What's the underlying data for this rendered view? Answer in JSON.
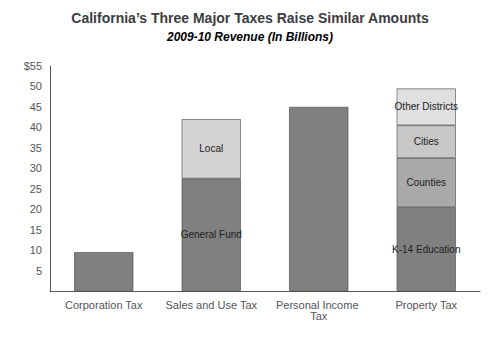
{
  "chart_data": {
    "type": "bar",
    "stacked": true,
    "title": "California’s Three Major Taxes Raise Similar Amounts",
    "subtitle": "2009-10 Revenue (In Billions)",
    "categories": [
      "Corporation Tax",
      "Sales and Use Tax",
      "Personal Income Tax",
      "Property Tax"
    ],
    "series": [
      {
        "values": [
          9.5,
          27.5,
          45.0,
          20.5
        ],
        "colors": [
          "#808080",
          "#808080",
          "#808080",
          "#808080"
        ],
        "labels": [
          null,
          "General Fund",
          null,
          "K-14 Education"
        ]
      },
      {
        "values": [
          null,
          14.5,
          null,
          12.0
        ],
        "colors": [
          null,
          "#d3d3d3",
          null,
          "#a9a9a9"
        ],
        "labels": [
          null,
          "Local",
          null,
          "Counties"
        ]
      },
      {
        "values": [
          null,
          null,
          null,
          8.0
        ],
        "colors": [
          null,
          null,
          null,
          "#c8c8c8"
        ],
        "labels": [
          null,
          null,
          null,
          "Cities"
        ]
      },
      {
        "values": [
          null,
          null,
          null,
          9.0
        ],
        "colors": [
          null,
          null,
          null,
          "#e0e0e0"
        ],
        "labels": [
          null,
          null,
          null,
          "Other Districts"
        ]
      }
    ],
    "ylim": [
      0,
      55
    ],
    "yticks": [
      5,
      10,
      15,
      20,
      25,
      30,
      35,
      40,
      45,
      50,
      {
        "value": 55,
        "label": "$55"
      }
    ],
    "grid": false
  }
}
